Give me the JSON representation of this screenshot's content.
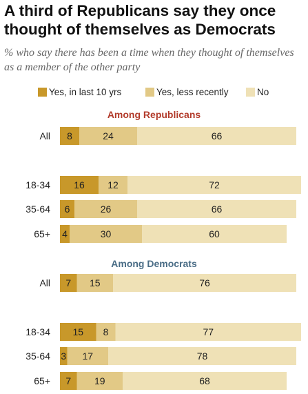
{
  "title": "A third of Republicans say they once thought of themselves as Democrats",
  "subtitle": "% who say there has been a time when they thought of themselves as a member of the other party",
  "legend": [
    {
      "label": "Yes, in last 10 yrs",
      "color": "#c8982a"
    },
    {
      "label": "Yes, less recently",
      "color": "#e2c986"
    },
    {
      "label": "No",
      "color": "#efe1b6"
    }
  ],
  "chart_data": {
    "type": "bar",
    "orientation": "horizontal",
    "stacked": true,
    "xlim": [
      0,
      100
    ],
    "groups": [
      {
        "title": "Among Republicans",
        "title_color": "#b23a2a",
        "rows": [
          {
            "label": "All",
            "values": [
              8,
              24,
              66
            ]
          },
          {
            "label": "18-34",
            "values": [
              16,
              12,
              72
            ]
          },
          {
            "label": "35-64",
            "values": [
              6,
              26,
              66
            ]
          },
          {
            "label": "65+",
            "values": [
              4,
              30,
              60
            ]
          }
        ]
      },
      {
        "title": "Among Democrats",
        "title_color": "#4a6d86",
        "rows": [
          {
            "label": "All",
            "values": [
              7,
              15,
              76
            ]
          },
          {
            "label": "18-34",
            "values": [
              15,
              8,
              77
            ]
          },
          {
            "label": "35-64",
            "values": [
              3,
              17,
              78
            ]
          },
          {
            "label": "65+",
            "values": [
              7,
              19,
              68
            ]
          }
        ]
      }
    ]
  }
}
